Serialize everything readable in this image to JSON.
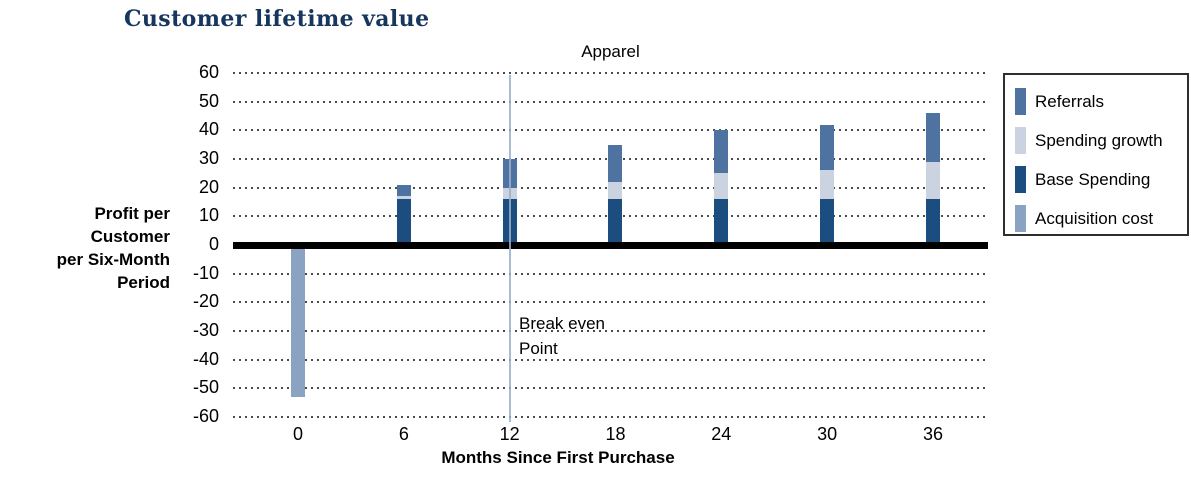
{
  "page_title": "Customer lifetime value",
  "title_color": "#17365d",
  "chart_data": {
    "type": "bar",
    "stacked": true,
    "title": "Apparel",
    "xlabel": "Months Since First Purchase",
    "ylabel": "Profit per Customer per Six-Month Period",
    "ylabel_lines": [
      "Profit per",
      "Customer",
      "per Six-Month",
      "Period"
    ],
    "categories": [
      "0",
      "6",
      "12",
      "18",
      "24",
      "30",
      "36"
    ],
    "x_values": [
      0,
      6,
      12,
      18,
      24,
      30,
      36
    ],
    "series": [
      {
        "name": "Acquisition cost",
        "color": "#8ba3c3",
        "values": [
          -53,
          0,
          0,
          0,
          0,
          0,
          0
        ]
      },
      {
        "name": "Base Spending",
        "color": "#1b4e7e",
        "values": [
          0,
          16,
          16,
          16,
          16,
          16,
          16
        ]
      },
      {
        "name": "Spending growth",
        "color": "#cbd2e0",
        "values": [
          0,
          1,
          4,
          6,
          9,
          10,
          13
        ]
      },
      {
        "name": "Referrals",
        "color": "#4e73a0",
        "values": [
          0,
          4,
          10,
          13,
          15,
          16,
          17
        ]
      }
    ],
    "totals": [
      -53,
      21,
      30,
      35,
      40,
      42,
      46
    ],
    "ylim": [
      -60,
      60
    ],
    "ytick_step": 10,
    "grid": "dotted-horizontal",
    "annotation": {
      "line1": "Break even",
      "line2": "Point",
      "at_x": 12
    },
    "legend": {
      "position": "right",
      "items": [
        {
          "label": "Referrals",
          "color": "#4e73a0"
        },
        {
          "label": "Spending growth",
          "color": "#cbd2e0"
        },
        {
          "label": "Base Spending",
          "color": "#1b4e7e"
        },
        {
          "label": "Acquisition cost",
          "color": "#8ba3c3"
        }
      ]
    }
  }
}
